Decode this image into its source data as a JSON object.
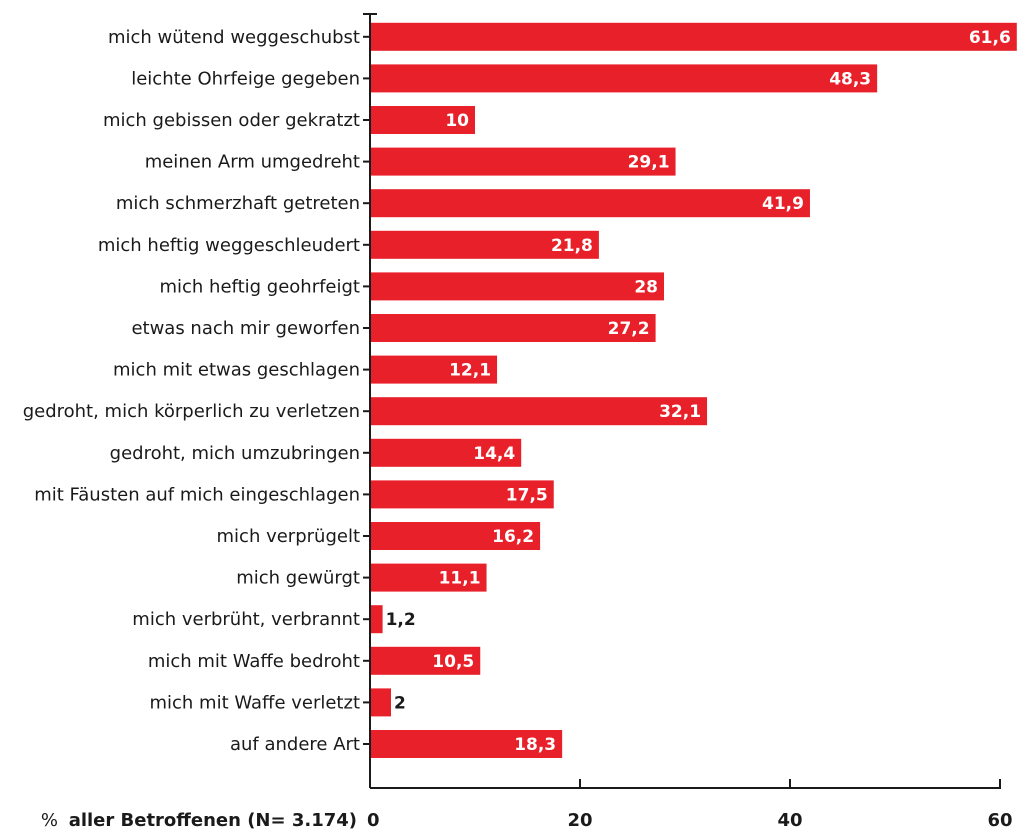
{
  "colors": {
    "bar": "#e8202a",
    "axis": "#1a1a1a"
  },
  "chart_data": {
    "type": "bar",
    "orientation": "horizontal",
    "categories": [
      "mich wütend weggeschubst",
      "leichte Ohrfeige gegeben",
      "mich gebissen oder gekratzt",
      "meinen Arm umgedreht",
      "mich schmerzhaft getreten",
      "mich heftig weggeschleudert",
      "mich heftig geohrfeigt",
      "etwas nach mir geworfen",
      "mich mit etwas geschlagen",
      "gedroht, mich körperlich zu verletzen",
      "gedroht, mich umzubringen",
      "mit Fäusten auf mich eingeschlagen",
      "mich verprügelt",
      "mich gewürgt",
      "mich verbrüht, verbrannt",
      "mich mit Waffe bedroht",
      "mich mit Waffe verletzt",
      "auf andere Art"
    ],
    "values": [
      61.6,
      48.3,
      10,
      29.1,
      41.9,
      21.8,
      28,
      27.2,
      12.1,
      32.1,
      14.4,
      17.5,
      16.2,
      11.1,
      1.2,
      10.5,
      2,
      18.3
    ],
    "value_labels": [
      "61,6",
      "48,3",
      "10",
      "29,1",
      "41,9",
      "21,8",
      "28",
      "27,2",
      "12,1",
      "32,1",
      "14,4",
      "17,5",
      "16,2",
      "11,1",
      "1,2",
      "10,5",
      "2",
      "18,3"
    ],
    "xlabel_prefix": "%",
    "xlabel": "aller Betroffenen (N= 3.174)",
    "xticks": [
      0,
      20,
      40,
      60
    ],
    "xtick_labels": [
      "0",
      "20",
      "40",
      "60"
    ],
    "xlim": [
      0,
      61.6
    ],
    "grid": false,
    "legend": "none"
  }
}
